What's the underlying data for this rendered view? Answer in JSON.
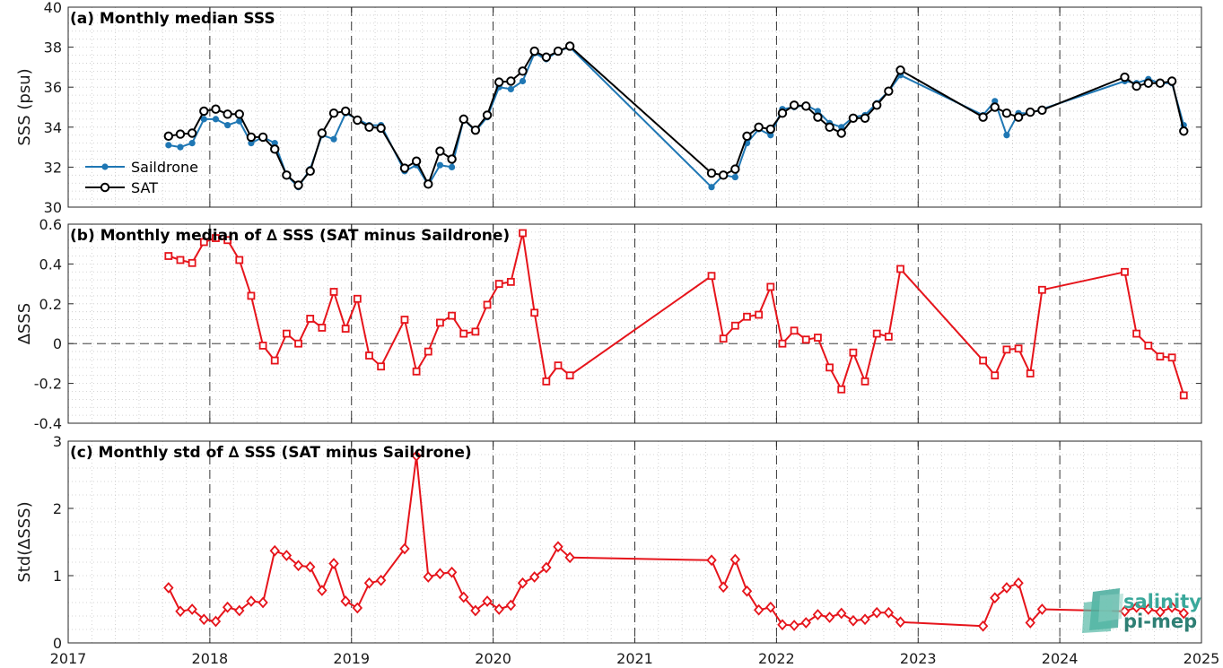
{
  "colors": {
    "saildrone": "#1f77b4",
    "sat": "#000000",
    "delta": "#e6141b",
    "logo_teal": "#3aa89b"
  },
  "logo": {
    "line1": "salinity",
    "line2": "pi-mep"
  },
  "chart_data": [
    {
      "type": "line",
      "panel": "a",
      "title": "(a) Monthly median SSS",
      "xlabel": "",
      "ylabel": "SSS (psu)",
      "xlim": [
        2017,
        2025
      ],
      "ylim": [
        30,
        40
      ],
      "yticks": [
        30,
        32,
        34,
        36,
        38,
        40
      ],
      "xticks": [
        "2017",
        "2018",
        "2019",
        "2020",
        "2021",
        "2022",
        "2023",
        "2024",
        "2025"
      ],
      "grid": true,
      "legend": "center-left",
      "series": [
        {
          "name": "Saildrone",
          "color": "#1f77b4",
          "marker": "dot",
          "x": [
            "2017-09",
            "2017-10",
            "2017-11",
            "2017-12",
            "2018-01",
            "2018-02",
            "2018-03",
            "2018-04",
            "2018-05",
            "2018-06",
            "2018-07",
            "2018-08",
            "2018-09",
            "2018-10",
            "2018-11",
            "2018-12",
            "2019-01",
            "2019-02",
            "2019-03",
            "2019-05",
            "2019-06",
            "2019-07",
            "2019-08",
            "2019-09",
            "2019-10",
            "2019-11",
            "2019-12",
            "2020-01",
            "2020-02",
            "2020-03",
            "2020-04",
            "2020-05",
            "2020-06",
            "2020-07",
            "2021-07",
            "2021-08",
            "2021-09",
            "2021-10",
            "2021-11",
            "2021-12",
            "2022-01",
            "2022-02",
            "2022-03",
            "2022-04",
            "2022-05",
            "2022-06",
            "2022-07",
            "2022-08",
            "2022-09",
            "2022-10",
            "2022-11",
            "2023-06",
            "2023-07",
            "2023-08",
            "2023-09",
            "2023-10",
            "2023-11",
            "2024-06",
            "2024-07",
            "2024-08",
            "2024-09",
            "2024-10",
            "2024-11"
          ],
          "y": [
            33.1,
            33.0,
            33.2,
            34.4,
            34.4,
            34.1,
            34.3,
            33.2,
            33.5,
            33.2,
            31.6,
            31.0,
            31.9,
            33.6,
            33.4,
            34.7,
            34.4,
            34.1,
            34.1,
            31.8,
            32.1,
            31.1,
            32.1,
            32.0,
            34.4,
            33.8,
            34.5,
            36.0,
            35.9,
            36.3,
            37.7,
            37.4,
            37.8,
            38.0,
            31.0,
            31.6,
            31.5,
            33.2,
            33.9,
            33.6,
            34.9,
            35.0,
            35.1,
            34.8,
            34.2,
            34.0,
            34.5,
            34.6,
            35.2,
            35.8,
            36.6,
            34.6,
            35.3,
            33.6,
            34.7,
            34.7,
            34.9,
            36.3,
            36.2,
            36.4,
            36.2,
            36.2,
            34.1
          ]
        },
        {
          "name": "SAT",
          "color": "#000000",
          "marker": "circle",
          "x": [
            "2017-09",
            "2017-10",
            "2017-11",
            "2017-12",
            "2018-01",
            "2018-02",
            "2018-03",
            "2018-04",
            "2018-05",
            "2018-06",
            "2018-07",
            "2018-08",
            "2018-09",
            "2018-10",
            "2018-11",
            "2018-12",
            "2019-01",
            "2019-02",
            "2019-03",
            "2019-05",
            "2019-06",
            "2019-07",
            "2019-08",
            "2019-09",
            "2019-10",
            "2019-11",
            "2019-12",
            "2020-01",
            "2020-02",
            "2020-03",
            "2020-04",
            "2020-05",
            "2020-06",
            "2020-07",
            "2021-07",
            "2021-08",
            "2021-09",
            "2021-10",
            "2021-11",
            "2021-12",
            "2022-01",
            "2022-02",
            "2022-03",
            "2022-04",
            "2022-05",
            "2022-06",
            "2022-07",
            "2022-08",
            "2022-09",
            "2022-10",
            "2022-11",
            "2023-06",
            "2023-07",
            "2023-08",
            "2023-09",
            "2023-10",
            "2023-11",
            "2024-06",
            "2024-07",
            "2024-08",
            "2024-09",
            "2024-10",
            "2024-11"
          ],
          "y": [
            33.55,
            33.65,
            33.7,
            34.8,
            34.9,
            34.65,
            34.65,
            33.5,
            33.5,
            32.9,
            31.6,
            31.1,
            31.8,
            33.7,
            34.7,
            34.8,
            34.35,
            34.0,
            33.95,
            31.95,
            32.3,
            31.15,
            32.8,
            32.4,
            34.4,
            33.85,
            34.6,
            36.25,
            36.3,
            36.8,
            37.8,
            37.5,
            37.8,
            38.05,
            31.7,
            31.6,
            31.9,
            33.55,
            34.0,
            33.9,
            34.7,
            35.1,
            35.05,
            34.5,
            34.0,
            33.7,
            34.45,
            34.45,
            35.1,
            35.8,
            36.85,
            34.5,
            35.0,
            34.7,
            34.5,
            34.75,
            34.85,
            36.5,
            36.05,
            36.2,
            36.2,
            36.3,
            33.8
          ]
        }
      ]
    },
    {
      "type": "line",
      "panel": "b",
      "title": "(b) Monthly median of ∆ SSS (SAT minus Saildrone)",
      "xlabel": "",
      "ylabel": "∆SSS",
      "xlim": [
        2017,
        2025
      ],
      "ylim": [
        -0.4,
        0.6
      ],
      "yticks": [
        "-0.4",
        "-0.2",
        "0",
        "0.2",
        "0.4",
        "0.6"
      ],
      "xticks": [
        "2017",
        "2018",
        "2019",
        "2020",
        "2021",
        "2022",
        "2023",
        "2024",
        "2025"
      ],
      "reference_line": 0,
      "grid": true,
      "series": [
        {
          "color": "#e6141b",
          "marker": "square",
          "x": [
            "2017-09",
            "2017-10",
            "2017-11",
            "2017-12",
            "2018-01",
            "2018-02",
            "2018-03",
            "2018-04",
            "2018-05",
            "2018-06",
            "2018-07",
            "2018-08",
            "2018-09",
            "2018-10",
            "2018-11",
            "2018-12",
            "2019-01",
            "2019-02",
            "2019-03",
            "2019-05",
            "2019-06",
            "2019-07",
            "2019-08",
            "2019-09",
            "2019-10",
            "2019-11",
            "2019-12",
            "2020-01",
            "2020-02",
            "2020-03",
            "2020-04",
            "2020-05",
            "2020-06",
            "2020-07",
            "2021-07",
            "2021-08",
            "2021-09",
            "2021-10",
            "2021-11",
            "2021-12",
            "2022-01",
            "2022-02",
            "2022-03",
            "2022-04",
            "2022-05",
            "2022-06",
            "2022-07",
            "2022-08",
            "2022-09",
            "2022-10",
            "2022-11",
            "2023-06",
            "2023-07",
            "2023-08",
            "2023-09",
            "2023-10",
            "2023-11",
            "2024-06",
            "2024-07",
            "2024-08",
            "2024-09",
            "2024-10",
            "2024-11"
          ],
          "y": [
            0.44,
            0.42,
            0.405,
            0.51,
            0.53,
            0.52,
            0.42,
            0.24,
            -0.01,
            -0.085,
            0.05,
            0.0,
            0.125,
            0.08,
            0.26,
            0.075,
            0.225,
            -0.06,
            -0.115,
            0.12,
            -0.14,
            -0.04,
            0.105,
            0.14,
            0.05,
            0.06,
            0.195,
            0.3,
            0.31,
            0.555,
            0.155,
            -0.19,
            -0.11,
            -0.16,
            0.34,
            0.025,
            0.09,
            0.135,
            0.145,
            0.285,
            0.0,
            0.065,
            0.02,
            0.03,
            -0.12,
            -0.23,
            -0.045,
            -0.19,
            0.05,
            0.035,
            0.375,
            -0.085,
            -0.16,
            -0.03,
            -0.025,
            -0.15,
            0.27,
            0.36,
            0.05,
            -0.01,
            -0.065,
            -0.07,
            -0.26
          ]
        }
      ]
    },
    {
      "type": "line",
      "panel": "c",
      "title": "(c) Monthly std of ∆ SSS (SAT minus Saildrone)",
      "xlabel": "",
      "ylabel": "Std(∆SSS)",
      "xlim": [
        2017,
        2025
      ],
      "ylim": [
        0,
        3
      ],
      "yticks": [
        "0",
        "1",
        "2",
        "3"
      ],
      "xticks": [
        "2017",
        "2018",
        "2019",
        "2020",
        "2021",
        "2022",
        "2023",
        "2024",
        "2025"
      ],
      "grid": true,
      "series": [
        {
          "color": "#e6141b",
          "marker": "diamond",
          "x": [
            "2017-09",
            "2017-10",
            "2017-11",
            "2017-12",
            "2018-01",
            "2018-02",
            "2018-03",
            "2018-04",
            "2018-05",
            "2018-06",
            "2018-07",
            "2018-08",
            "2018-09",
            "2018-10",
            "2018-11",
            "2018-12",
            "2019-01",
            "2019-02",
            "2019-03",
            "2019-05",
            "2019-06",
            "2019-07",
            "2019-08",
            "2019-09",
            "2019-10",
            "2019-11",
            "2019-12",
            "2020-01",
            "2020-02",
            "2020-03",
            "2020-04",
            "2020-05",
            "2020-06",
            "2020-07",
            "2021-07",
            "2021-08",
            "2021-09",
            "2021-10",
            "2021-11",
            "2021-12",
            "2022-01",
            "2022-02",
            "2022-03",
            "2022-04",
            "2022-05",
            "2022-06",
            "2022-07",
            "2022-08",
            "2022-09",
            "2022-10",
            "2022-11",
            "2023-06",
            "2023-07",
            "2023-08",
            "2023-09",
            "2023-10",
            "2023-11",
            "2024-06",
            "2024-07",
            "2024-08",
            "2024-09",
            "2024-10",
            "2024-11"
          ],
          "y": [
            0.82,
            0.47,
            0.5,
            0.35,
            0.32,
            0.53,
            0.48,
            0.62,
            0.6,
            1.37,
            1.3,
            1.15,
            1.13,
            0.78,
            1.18,
            0.62,
            0.52,
            0.89,
            0.93,
            1.4,
            2.78,
            0.98,
            1.03,
            1.05,
            0.68,
            0.48,
            0.62,
            0.5,
            0.56,
            0.89,
            0.98,
            1.12,
            1.43,
            1.27,
            1.23,
            0.83,
            1.24,
            0.77,
            0.49,
            0.53,
            0.27,
            0.26,
            0.3,
            0.42,
            0.38,
            0.44,
            0.33,
            0.35,
            0.45,
            0.45,
            0.31,
            0.25,
            0.67,
            0.82,
            0.89,
            0.3,
            0.5,
            0.47,
            0.53,
            0.5,
            0.46,
            0.53,
            0.44
          ]
        }
      ]
    }
  ]
}
